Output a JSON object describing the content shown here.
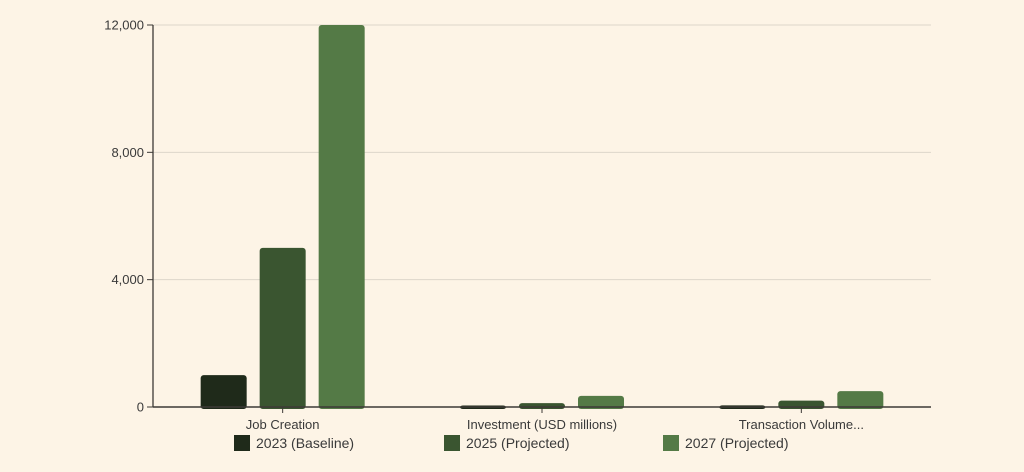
{
  "colors": {
    "background": "#fdf4e6",
    "grid": "#ddd6ca",
    "axis": "#3d3a36",
    "series": [
      "#1f2a1a",
      "#3a5530",
      "#547a46"
    ]
  },
  "chart_data": {
    "type": "bar",
    "title": "",
    "xlabel": "",
    "ylabel": "",
    "categories": [
      "Job Creation",
      "Investment (USD millions)",
      "Transaction Volume..."
    ],
    "series": [
      {
        "name": "2023 (Baseline)",
        "values": [
          1000,
          20,
          50
        ]
      },
      {
        "name": "2025 (Projected)",
        "values": [
          5000,
          120,
          200
        ]
      },
      {
        "name": "2027 (Projected)",
        "values": [
          12000,
          350,
          500
        ]
      }
    ],
    "ylim": [
      0,
      12000
    ],
    "yticks": [
      0,
      4000,
      8000,
      12000
    ],
    "ytick_labels": [
      "0",
      "4,000",
      "8,000",
      "12,000"
    ],
    "grid": true,
    "legend_position": "bottom"
  }
}
